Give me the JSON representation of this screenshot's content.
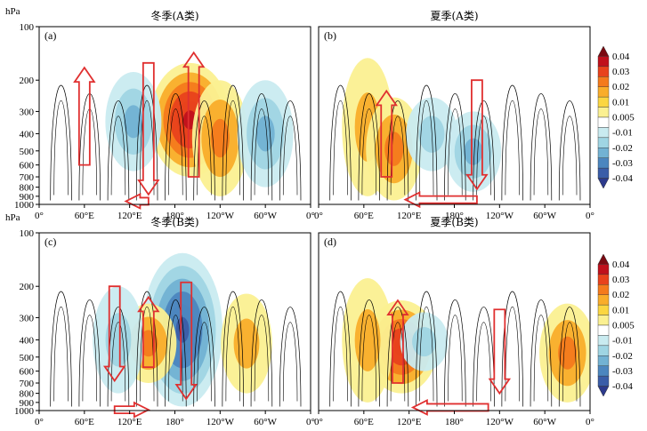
{
  "chart_data": [
    {
      "type": "heatmap",
      "panel_label": "(a)",
      "title": "冬季(A类)",
      "ylabel": "hPa",
      "y_ticks": [
        "100",
        "200",
        "300",
        "400",
        "500",
        "600",
        "700",
        "800",
        "900",
        "1000"
      ],
      "x_ticks": [
        "0°",
        "60°E",
        "120°E",
        "180°",
        "120°W",
        "60°W",
        "0°"
      ],
      "arrows": [
        {
          "dir": "up",
          "lon": 60,
          "from_hPa": 600,
          "to_hPa": 170
        },
        {
          "dir": "down",
          "lon": 145,
          "from_hPa": 160,
          "to_hPa": 880
        },
        {
          "dir": "up",
          "lon": 205,
          "from_hPa": 700,
          "to_hPa": 140
        },
        {
          "dir": "left",
          "lon_from": 145,
          "lon_to": 115,
          "at_hPa": 960
        }
      ],
      "shading": [
        {
          "lon": 200,
          "p_top": 160,
          "p_bot": 700,
          "value": 0.03
        },
        {
          "lon": 240,
          "p_top": 200,
          "p_bot": 900,
          "value": 0.015
        },
        {
          "lon": 125,
          "p_top": 180,
          "p_bot": 650,
          "value": -0.015
        },
        {
          "lon": 300,
          "p_top": 200,
          "p_bot": 800,
          "value": -0.015
        }
      ]
    },
    {
      "type": "heatmap",
      "panel_label": "(b)",
      "title": "夏季(A类)",
      "x_ticks": [
        "0°",
        "60°E",
        "120°E",
        "180°",
        "120°W",
        "60°W",
        "0°"
      ],
      "arrows": [
        {
          "dir": "up",
          "lon": 90,
          "from_hPa": 700,
          "to_hPa": 230
        },
        {
          "dir": "down",
          "lon": 210,
          "from_hPa": 200,
          "to_hPa": 820
        },
        {
          "dir": "left",
          "lon_from": 210,
          "lon_to": 115,
          "at_hPa": 940
        }
      ],
      "shading": [
        {
          "lon": 65,
          "p_top": 150,
          "p_bot": 900,
          "value": 0.012
        },
        {
          "lon": 100,
          "p_top": 250,
          "p_bot": 950,
          "value": 0.015
        },
        {
          "lon": 150,
          "p_top": 250,
          "p_bot": 650,
          "value": -0.012
        },
        {
          "lon": 205,
          "p_top": 300,
          "p_bot": 850,
          "value": -0.015
        }
      ]
    },
    {
      "type": "heatmap",
      "panel_label": "(c)",
      "title": "冬季(B类)",
      "ylabel": "hPa",
      "y_ticks": [
        "100",
        "200",
        "300",
        "400",
        "500",
        "600",
        "700",
        "800",
        "900",
        "1000"
      ],
      "x_ticks": [
        "0°",
        "60°E",
        "120°E",
        "180°",
        "120°W",
        "60°W",
        "0°"
      ],
      "arrows": [
        {
          "dir": "down",
          "lon": 100,
          "from_hPa": 200,
          "to_hPa": 680
        },
        {
          "dir": "up",
          "lon": 145,
          "from_hPa": 570,
          "to_hPa": 230
        },
        {
          "dir": "down",
          "lon": 195,
          "from_hPa": 190,
          "to_hPa": 860
        },
        {
          "dir": "right",
          "lon_from": 100,
          "lon_to": 145,
          "at_hPa": 990
        }
      ],
      "shading": [
        {
          "lon": 190,
          "p_top": 130,
          "p_bot": 950,
          "value": -0.03
        },
        {
          "lon": 145,
          "p_top": 250,
          "p_bot": 700,
          "value": 0.015
        },
        {
          "lon": 105,
          "p_top": 200,
          "p_bot": 800,
          "value": -0.012
        },
        {
          "lon": 275,
          "p_top": 220,
          "p_bot": 800,
          "value": 0.012
        }
      ]
    },
    {
      "type": "heatmap",
      "panel_label": "(d)",
      "title": "夏季(B类)",
      "x_ticks": [
        "0°",
        "60°E",
        "120°E",
        "180°",
        "120°W",
        "60°W",
        "0°"
      ],
      "arrows": [
        {
          "dir": "up",
          "lon": 105,
          "from_hPa": 700,
          "to_hPa": 240
        },
        {
          "dir": "down",
          "lon": 240,
          "from_hPa": 270,
          "to_hPa": 800
        },
        {
          "dir": "left",
          "lon_from": 225,
          "lon_to": 125,
          "at_hPa": 960
        }
      ],
      "shading": [
        {
          "lon": 110,
          "p_top": 240,
          "p_bot": 800,
          "value": 0.025
        },
        {
          "lon": 65,
          "p_top": 180,
          "p_bot": 900,
          "value": 0.012
        },
        {
          "lon": 140,
          "p_top": 280,
          "p_bot": 600,
          "value": -0.01
        },
        {
          "lon": 330,
          "p_top": 250,
          "p_bot": 900,
          "value": 0.015
        }
      ]
    }
  ],
  "colorbars": [
    {
      "ticks": [
        "0.04",
        "0.03",
        "0.02",
        "0.01",
        "0.005",
        "-0.01",
        "-0.02",
        "-0.03",
        "-0.04"
      ]
    },
    {
      "ticks": [
        "0.04",
        "0.03",
        "0.02",
        "0.01",
        "0.005",
        "-0.01",
        "-0.02",
        "-0.03",
        "-0.04"
      ]
    }
  ],
  "colors": {
    "palette": [
      "#7a0a12",
      "#c0101c",
      "#e8421c",
      "#f47a1c",
      "#f9ad2a",
      "#fbd641",
      "#fbf091",
      "#ffffff",
      "#c9ebf0",
      "#9fd5e3",
      "#72b2d3",
      "#4c86bf",
      "#3a5da8",
      "#2c3a8c"
    ],
    "arrow": "#e03030",
    "streamline": "#000000"
  }
}
